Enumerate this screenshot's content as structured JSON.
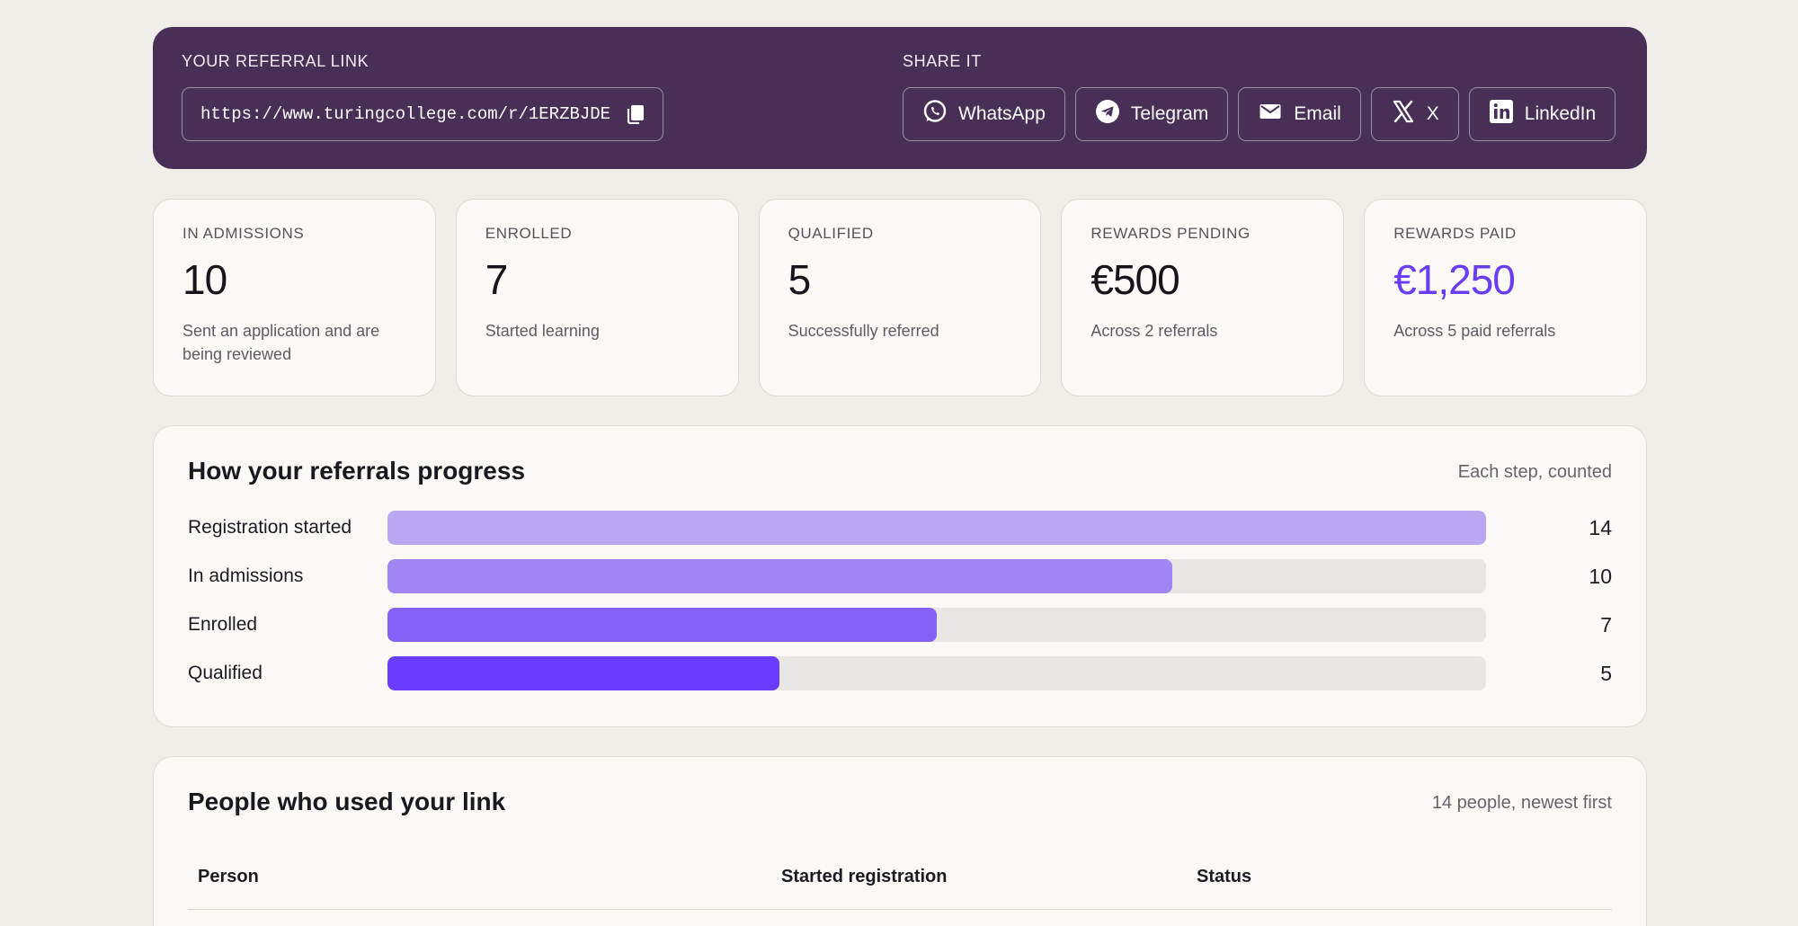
{
  "referral": {
    "link_label": "YOUR REFERRAL LINK",
    "link_url": "https://www.turingcollege.com/r/1ERZBJDE",
    "share_label": "SHARE IT",
    "share_buttons": [
      {
        "label": "WhatsApp",
        "icon": "whatsapp-icon"
      },
      {
        "label": "Telegram",
        "icon": "telegram-icon"
      },
      {
        "label": "Email",
        "icon": "email-icon"
      },
      {
        "label": "X",
        "icon": "x-icon"
      },
      {
        "label": "LinkedIn",
        "icon": "linkedin-icon"
      }
    ]
  },
  "stats": [
    {
      "label": "IN ADMISSIONS",
      "value": "10",
      "desc": "Sent an application and are being reviewed"
    },
    {
      "label": "ENROLLED",
      "value": "7",
      "desc": "Started learning"
    },
    {
      "label": "QUALIFIED",
      "value": "5",
      "desc": "Successfully referred"
    },
    {
      "label": "REWARDS PENDING",
      "value": "€500",
      "desc": "Across 2 referrals"
    },
    {
      "label": "REWARDS PAID",
      "value": "€1,250",
      "desc": "Across 5 paid referrals"
    }
  ],
  "progress": {
    "title": "How your referrals progress",
    "note": "Each step, counted",
    "max": 14,
    "steps": [
      {
        "label": "Registration started",
        "count": 14,
        "color": "#b9a8f1"
      },
      {
        "label": "In admissions",
        "count": 10,
        "color": "#a085f5"
      },
      {
        "label": "Enrolled",
        "count": 7,
        "color": "#8462f8"
      },
      {
        "label": "Qualified",
        "count": 5,
        "color": "#6a3cfb"
      }
    ]
  },
  "people": {
    "title": "People who used your link",
    "note": "14 people, newest first",
    "columns": [
      "Person",
      "Started registration",
      "Status"
    ]
  },
  "colors": {
    "banner": "#482f55",
    "accent": "#6a3df5",
    "background": "#f1eee9"
  }
}
